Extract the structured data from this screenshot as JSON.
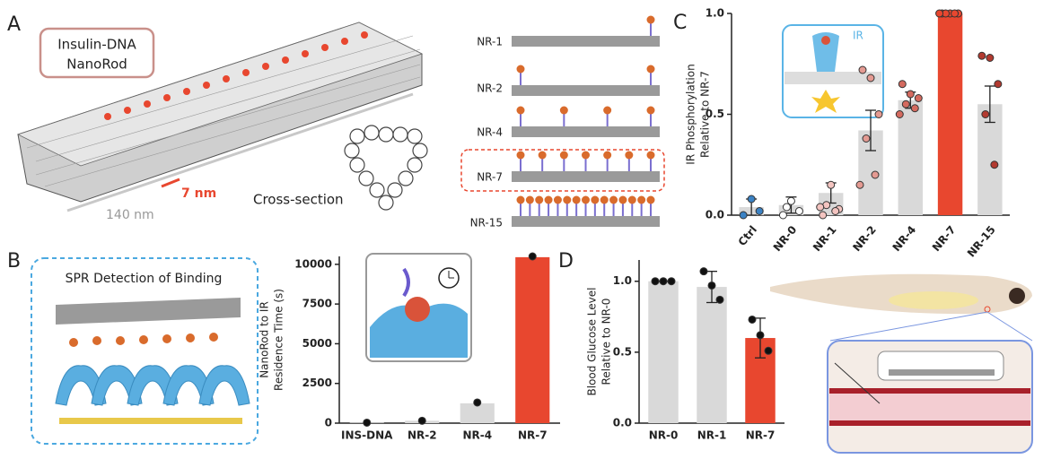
{
  "panel_labels": [
    "A",
    "B",
    "C",
    "D"
  ],
  "panel_a": {
    "box_title": [
      "Insulin-DNA",
      "NanoRod"
    ],
    "width_label": "7 nm",
    "length_label": "140 nm",
    "cross_section_label": "Cross-section",
    "rods": [
      "NR-1",
      "NR-2",
      "NR-4",
      "NR-7",
      "NR-15"
    ]
  },
  "panel_b": {
    "spr_title": "SPR Detection of Binding"
  },
  "panel_c": {
    "inset_label": "IR"
  },
  "chart_data": [
    {
      "type": "bar",
      "ylabel": [
        "IR Phosphorylation",
        "Relative to NR-7"
      ],
      "categories": [
        "Ctrl",
        "NR-0",
        "NR-1",
        "NR-2",
        "NR-4",
        "NR-7",
        "NR-15"
      ],
      "values": [
        0.04,
        0.05,
        0.11,
        0.42,
        0.57,
        1.0,
        0.55
      ],
      "errors": [
        0.04,
        0.04,
        0.05,
        0.1,
        0.04,
        0,
        0.09
      ],
      "points": [
        [
          0.0,
          0.08,
          0.02
        ],
        [
          0.0,
          0.07,
          0.02,
          0.04
        ],
        [
          0.0,
          0.15,
          0.03,
          0.05,
          0.02,
          0.04
        ],
        [
          0.72,
          0.68,
          0.5,
          0.38,
          0.2,
          0.15
        ],
        [
          0.65,
          0.6,
          0.58,
          0.55,
          0.53,
          0.5
        ],
        [
          1.0,
          1.0,
          1.0,
          1.0,
          1.0,
          1.0
        ],
        [
          0.79,
          0.78,
          0.65,
          0.5,
          0.25
        ]
      ],
      "colors": [
        "#d9d9d9",
        "#d9d9d9",
        "#d9d9d9",
        "#d9d9d9",
        "#d9d9d9",
        "#e8472f",
        "#d9d9d9"
      ],
      "point_colors": [
        "#3b82c4",
        "#ffffff",
        "#f3c4c0",
        "#e49a92",
        "#d46a5f",
        "#e8472f",
        "#b23a30"
      ],
      "ylim": [
        0,
        1.0
      ],
      "yticks": [
        {
          "value": 0,
          "label": "0.0"
        },
        {
          "value": 0.5,
          "label": "0.5"
        },
        {
          "value": 1.0,
          "label": "1.0"
        }
      ]
    },
    {
      "type": "bar",
      "ylabel": [
        "NanoRod to IR",
        "Residence Time (s)"
      ],
      "categories": [
        "INS-DNA",
        "NR-2",
        "NR-4",
        "NR-7"
      ],
      "values": [
        30,
        150,
        1250,
        10450
      ],
      "points": [
        [
          30
        ],
        [
          150
        ],
        [
          1300
        ],
        [
          10500
        ]
      ],
      "colors": [
        "#d9d9d9",
        "#d9d9d9",
        "#d9d9d9",
        "#e8472f"
      ],
      "point_colors": [
        "#111111",
        "#111111",
        "#111111",
        "#111111"
      ],
      "ylim": [
        0,
        10500
      ],
      "yticks": [
        0,
        2500,
        5000,
        7500,
        10000
      ]
    },
    {
      "type": "bar",
      "ylabel": [
        "Blood Glucose Level",
        "Relative to NR-0"
      ],
      "categories": [
        "NR-0",
        "NR-1",
        "NR-7"
      ],
      "values": [
        1.0,
        0.96,
        0.6
      ],
      "errors": [
        0,
        0.11,
        0.14
      ],
      "points": [
        [
          1.0,
          1.0,
          1.0
        ],
        [
          1.07,
          0.97,
          0.87
        ],
        [
          0.73,
          0.62,
          0.51
        ]
      ],
      "colors": [
        "#d9d9d9",
        "#d9d9d9",
        "#e8472f"
      ],
      "point_colors": [
        "#111111",
        "#111111",
        "#111111"
      ],
      "ylim": [
        0,
        1.15
      ],
      "yticks": [
        {
          "value": 0,
          "label": "0.0"
        },
        {
          "value": 0.5,
          "label": "0.5"
        },
        {
          "value": 1.0,
          "label": "1.0"
        }
      ]
    }
  ]
}
